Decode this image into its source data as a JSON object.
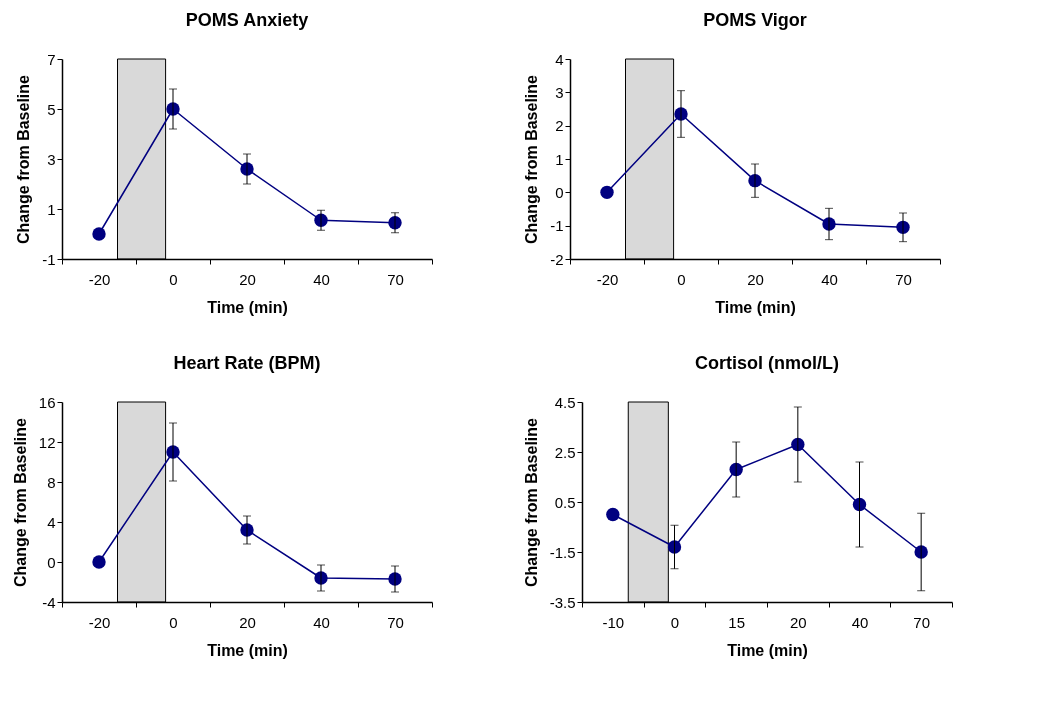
{
  "chart_data": [
    {
      "type": "line",
      "title": "POMS Anxiety",
      "xlabel": "Time (min)",
      "ylabel": "Change from Baseline",
      "categories": [
        "-20",
        "0",
        "20",
        "40",
        "70"
      ],
      "series": [
        {
          "color": "#000080",
          "values": [
            0,
            5.0,
            2.6,
            0.55,
            0.45
          ],
          "errors": [
            null,
            0.8,
            0.6,
            0.4,
            0.4
          ]
        }
      ],
      "ylim": [
        -1,
        7
      ],
      "yticks": [
        -1,
        1,
        3,
        5,
        7
      ],
      "marker": "circle",
      "grid": false,
      "bands": [
        {
          "axis": "x",
          "from": "-20",
          "to": "0",
          "color": "#d9d9d9"
        }
      ]
    },
    {
      "type": "line",
      "title": "POMS Vigor",
      "xlabel": "Time (min)",
      "ylabel": "Change from Baseline",
      "categories": [
        "-20",
        "0",
        "20",
        "40",
        "70"
      ],
      "series": [
        {
          "color": "#000080",
          "values": [
            0,
            2.35,
            0.35,
            -0.95,
            -1.05
          ],
          "errors": [
            null,
            0.7,
            0.5,
            0.47,
            0.43
          ]
        }
      ],
      "ylim": [
        -2,
        4
      ],
      "yticks": [
        -2,
        -1,
        0,
        1,
        2,
        3,
        4
      ],
      "marker": "circle",
      "grid": false,
      "bands": [
        {
          "axis": "x",
          "from": "-20",
          "to": "0",
          "color": "#d9d9d9"
        }
      ]
    },
    {
      "type": "line",
      "title": "Heart Rate (BPM)",
      "xlabel": "Time (min)",
      "ylabel": "Change from Baseline",
      "categories": [
        "-20",
        "0",
        "20",
        "40",
        "70"
      ],
      "series": [
        {
          "color": "#000080",
          "values": [
            0,
            11,
            3.2,
            -1.6,
            -1.7
          ],
          "errors": [
            null,
            2.9,
            1.4,
            1.3,
            1.3
          ]
        }
      ],
      "ylim": [
        -4,
        16
      ],
      "yticks": [
        -4,
        0,
        4,
        8,
        12,
        16
      ],
      "marker": "circle",
      "grid": false,
      "bands": [
        {
          "axis": "x",
          "from": "-20",
          "to": "0",
          "color": "#d9d9d9"
        }
      ]
    },
    {
      "type": "line",
      "title": "Cortisol (nmol/L)",
      "xlabel": "Time (min)",
      "ylabel": "Change from Baseline",
      "categories": [
        "-10",
        "0",
        "15",
        "20",
        "40",
        "70"
      ],
      "series": [
        {
          "color": "#000080",
          "values": [
            0,
            -1.3,
            1.8,
            2.8,
            0.4,
            -1.5
          ],
          "errors": [
            null,
            0.87,
            1.1,
            1.5,
            1.7,
            1.55
          ]
        }
      ],
      "ylim": [
        -3.5,
        4.5
      ],
      "yticks": [
        -3.5,
        -1.5,
        0.5,
        2.5,
        4.5
      ],
      "marker": "circle",
      "grid": false,
      "bands": [
        {
          "axis": "x",
          "from": "-10",
          "to": "0",
          "color": "#d9d9d9"
        }
      ]
    }
  ]
}
